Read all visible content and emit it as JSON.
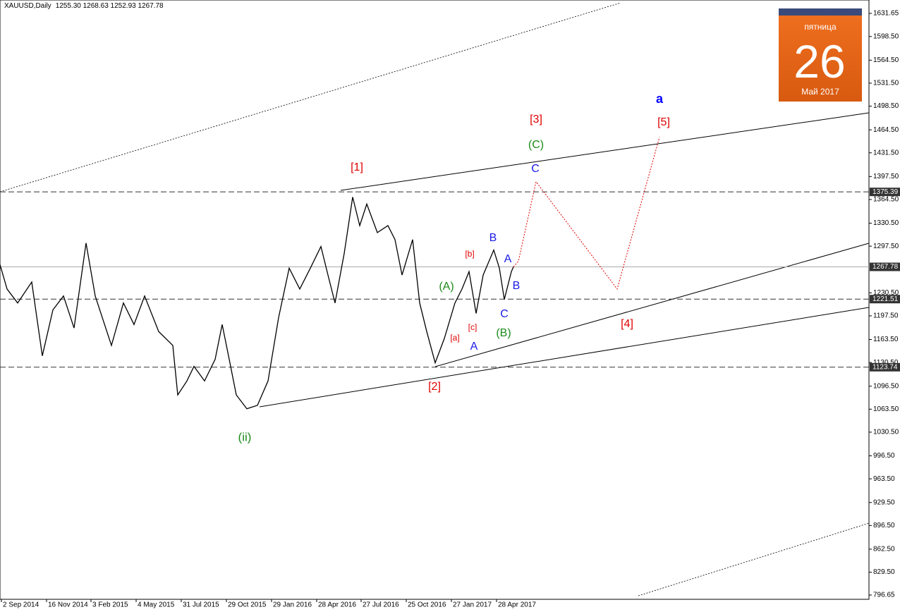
{
  "header": {
    "symbol": "XAUUSD,Daily",
    "ohlc": "1255.30 1268.63 1252.93 1267.78"
  },
  "calendar": {
    "weekday": "пятница",
    "day": "26",
    "month": "Май 2017"
  },
  "chart_data": {
    "type": "line",
    "xlim": [
      0,
      1232
    ],
    "ylim": [
      790.55,
      1650.88
    ],
    "xticks": [
      {
        "value": 2,
        "label": "2 Sep 2014"
      },
      {
        "value": 66,
        "label": "16 Nov 2014"
      },
      {
        "value": 129,
        "label": "3 Feb 2015"
      },
      {
        "value": 193,
        "label": "4 May 2015"
      },
      {
        "value": 257,
        "label": "31 Jul 2015"
      },
      {
        "value": 321,
        "label": "29 Oct 2015"
      },
      {
        "value": 385,
        "label": "29 Jan 2016"
      },
      {
        "value": 449,
        "label": "28 Apr 2016"
      },
      {
        "value": 512,
        "label": "27 Jul 2016"
      },
      {
        "value": 576,
        "label": "25 Oct 2016"
      },
      {
        "value": 640,
        "label": "27 Jan 2017"
      },
      {
        "value": 704,
        "label": "28 Apr 2017"
      }
    ],
    "yticks": [
      {
        "value": 1631.65,
        "label": "1631.65"
      },
      {
        "value": 1598.5,
        "label": "1598.50"
      },
      {
        "value": 1564.5,
        "label": "1564.50"
      },
      {
        "value": 1531.5,
        "label": "1531.50"
      },
      {
        "value": 1498.5,
        "label": "1498.50"
      },
      {
        "value": 1464.5,
        "label": "1464.50"
      },
      {
        "value": 1431.5,
        "label": "1431.50"
      },
      {
        "value": 1397.5,
        "label": "1397.50"
      },
      {
        "value": 1364.5,
        "label": "1364.50"
      },
      {
        "value": 1330.5,
        "label": "1330.50"
      },
      {
        "value": 1297.5,
        "label": "1297.50"
      },
      {
        "value": 1230.5,
        "label": "1230.50"
      },
      {
        "value": 1197.5,
        "label": "1197.50"
      },
      {
        "value": 1163.5,
        "label": "1163.50"
      },
      {
        "value": 1130.5,
        "label": "1130.50"
      },
      {
        "value": 1096.5,
        "label": "1096.50"
      },
      {
        "value": 1063.5,
        "label": "1063.50"
      },
      {
        "value": 1030.5,
        "label": "1030.50"
      },
      {
        "value": 996.5,
        "label": "996.50"
      },
      {
        "value": 963.5,
        "label": "963.50"
      },
      {
        "value": 929.5,
        "label": "929.50"
      },
      {
        "value": 896.5,
        "label": "896.50"
      },
      {
        "value": 862.5,
        "label": "862.50"
      },
      {
        "value": 829.5,
        "label": "829.50"
      },
      {
        "value": 796.65,
        "label": "796.65"
      }
    ],
    "levels": [
      {
        "value": 1375.39,
        "style": "dashed"
      },
      {
        "value": 1267.78,
        "style": "solid"
      },
      {
        "value": 1221.51,
        "style": "dashed"
      },
      {
        "value": 1123.74,
        "style": "dashed"
      }
    ],
    "series": [
      {
        "color": "#000000",
        "style": "solid",
        "x": [
          0,
          10,
          25,
          45,
          60,
          75,
          90,
          105,
          122,
          135,
          158,
          175,
          190,
          205,
          225,
          245,
          252,
          265,
          275,
          290,
          305,
          315,
          325,
          335,
          350,
          365,
          380,
          395,
          410,
          425,
          440,
          455,
          465,
          475,
          488,
          500,
          510,
          520,
          535,
          550,
          560,
          570,
          585,
          595,
          605,
          617,
          630,
          645,
          655,
          665,
          675,
          685,
          700,
          708,
          715,
          725,
          728
        ],
        "values": [
          1271,
          1236,
          1216,
          1246,
          1140,
          1206,
          1226,
          1180,
          1302,
          1226,
          1155,
          1216,
          1185,
          1226,
          1175,
          1155,
          1084,
          1104,
          1125,
          1104,
          1135,
          1185,
          1135,
          1084,
          1064,
          1069,
          1104,
          1195,
          1266,
          1236,
          1266,
          1297,
          1256,
          1216,
          1287,
          1368,
          1327,
          1358,
          1317,
          1327,
          1307,
          1256,
          1307,
          1216,
          1175,
          1130,
          1165,
          1216,
          1236,
          1261,
          1201,
          1256,
          1292,
          1266,
          1221,
          1261,
          1267.78
        ]
      },
      {
        "color": "#e00000",
        "style": "dotted",
        "x": [
          728,
          735,
          760,
          875,
          935
        ],
        "values": [
          1267.78,
          1276,
          1390,
          1236,
          1454
        ]
      }
    ],
    "annotations": [
      {
        "text": "[1]",
        "color": "#e00000"
      },
      {
        "text": "[2]",
        "color": "#e00000"
      },
      {
        "text": "[3]",
        "color": "#e00000"
      },
      {
        "text": "[4]",
        "color": "#e00000"
      },
      {
        "text": "[5]",
        "color": "#e00000"
      },
      {
        "text": "(ii)",
        "color": "#1a8a1a"
      },
      {
        "text": "(A)",
        "color": "#1a8a1a"
      },
      {
        "text": "(B)",
        "color": "#1a8a1a"
      },
      {
        "text": "(C)",
        "color": "#1a8a1a"
      },
      {
        "text": "A",
        "color": "#1a1ae6"
      },
      {
        "text": "B",
        "color": "#1a1ae6"
      },
      {
        "text": "A",
        "color": "#1a1ae6"
      },
      {
        "text": "B",
        "color": "#1a1ae6"
      },
      {
        "text": "C",
        "color": "#1a1ae6"
      },
      {
        "text": "C",
        "color": "#1a1ae6"
      },
      {
        "text": "[a]",
        "color": "#e00000"
      },
      {
        "text": "[b]",
        "color": "#e00000"
      },
      {
        "text": "[c]",
        "color": "#e00000"
      },
      {
        "text": "a",
        "color": "#0000ff"
      }
    ]
  }
}
